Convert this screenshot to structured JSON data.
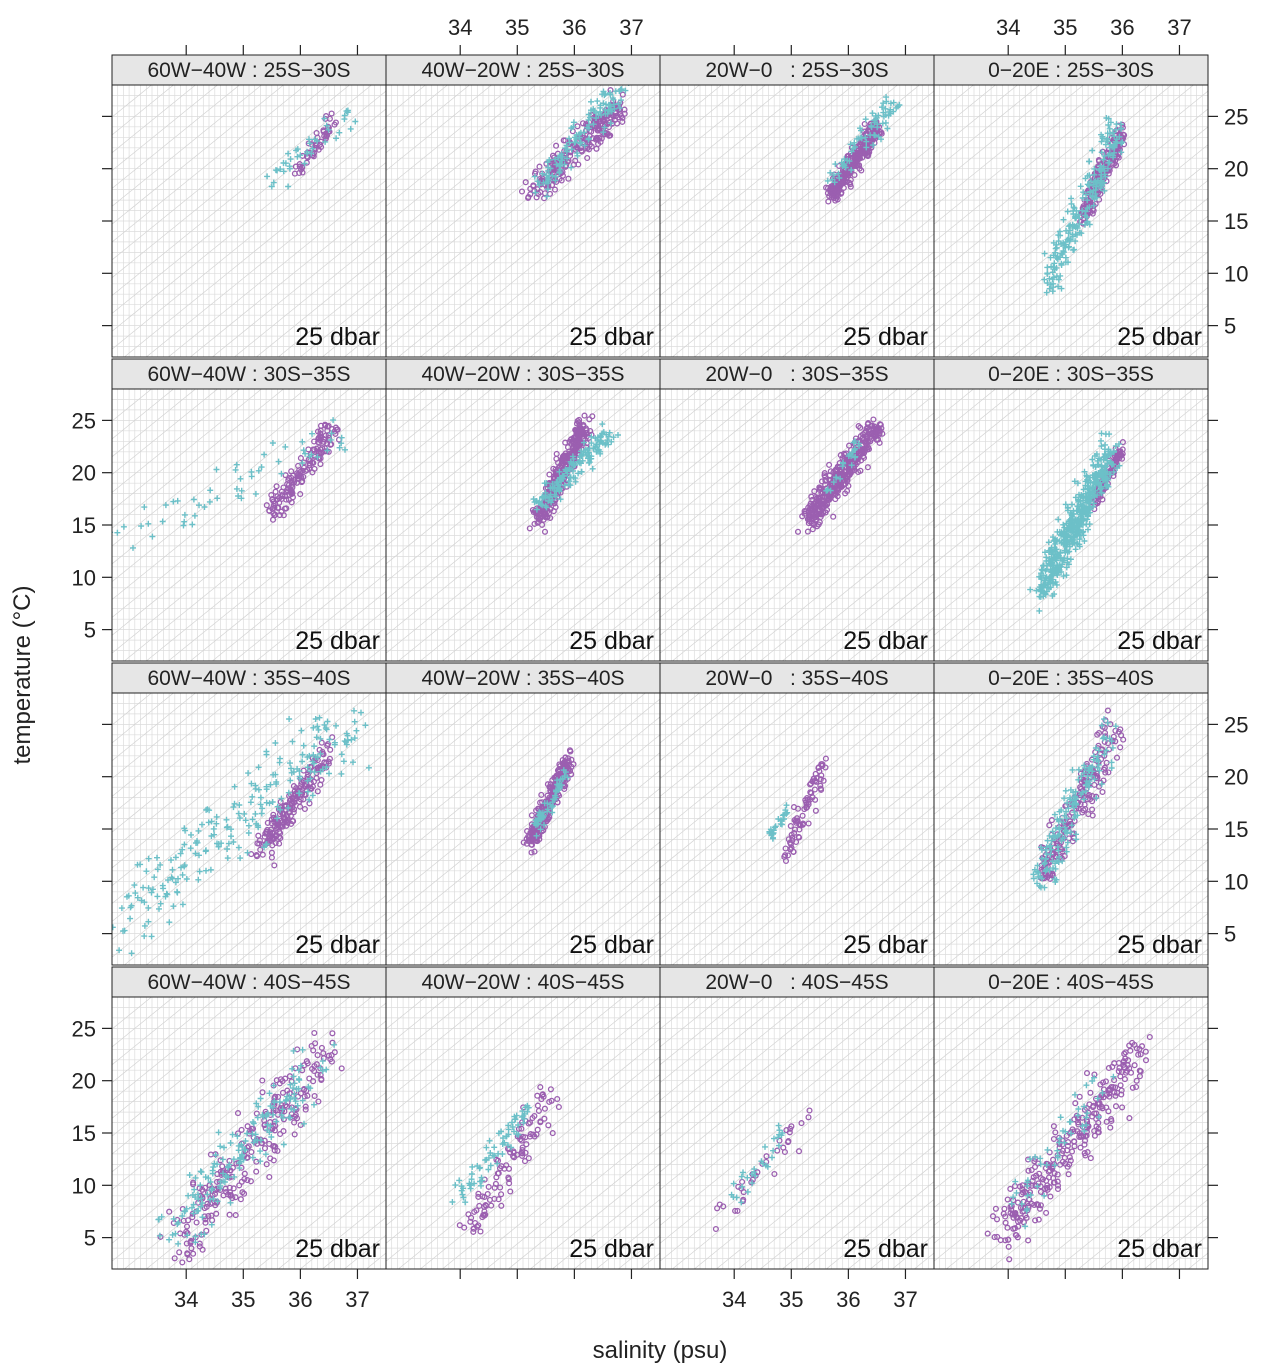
{
  "chart_data": {
    "type": "scatter",
    "layout": "4x4 lattice",
    "xlabel": "salinity (psu)",
    "ylabel": "temperature (°C)",
    "xlim": [
      32.7,
      37.5
    ],
    "ylim": [
      2,
      28
    ],
    "x_ticks": [
      34,
      35,
      36,
      37
    ],
    "y_ticks": [
      5,
      10,
      15,
      20,
      25
    ],
    "grid": "on",
    "pressure_label": "25 dbar",
    "series_styles": [
      {
        "marker": "circle",
        "color": "#9b5fb0"
      },
      {
        "marker": "plus",
        "color": "#6cc0c8"
      }
    ],
    "panels": [
      {
        "label": "60W−40W : 25S−30S",
        "row": 1,
        "col": 1,
        "clusters": [
          {
            "series": 0,
            "x": [
              35.95,
              36.6
            ],
            "y": [
              19.5,
              25.0
            ],
            "n": 50
          },
          {
            "series": 1,
            "x": [
              35.5,
              37.0
            ],
            "y": [
              19.0,
              25.5
            ],
            "n": 40
          }
        ]
      },
      {
        "label": "40W−20W : 25S−30S",
        "row": 1,
        "col": 2,
        "clusters": [
          {
            "series": 0,
            "x": [
              35.3,
              36.8
            ],
            "y": [
              18.0,
              26.0
            ],
            "n": 260
          },
          {
            "series": 1,
            "x": [
              35.3,
              36.8
            ],
            "y": [
              18.0,
              27.5
            ],
            "n": 120
          }
        ]
      },
      {
        "label": "20W−0   : 25S−30S",
        "row": 1,
        "col": 3,
        "clusters": [
          {
            "series": 0,
            "x": [
              35.7,
              36.5
            ],
            "y": [
              17.5,
              24.0
            ],
            "n": 320
          },
          {
            "series": 1,
            "x": [
              35.7,
              36.8
            ],
            "y": [
              19.0,
              26.5
            ],
            "n": 70
          }
        ]
      },
      {
        "label": "0−20E : 25S−30S",
        "row": 1,
        "col": 4,
        "clusters": [
          {
            "series": 0,
            "x": [
              35.3,
              36.0
            ],
            "y": [
              15.5,
              23.5
            ],
            "n": 230
          },
          {
            "series": 1,
            "x": [
              34.7,
              35.9
            ],
            "y": [
              9.5,
              23.5
            ],
            "n": 210
          }
        ]
      },
      {
        "label": "60W−40W : 30S−35S",
        "row": 2,
        "col": 1,
        "clusters": [
          {
            "series": 0,
            "x": [
              35.5,
              36.6
            ],
            "y": [
              16.0,
              24.5
            ],
            "n": 150
          },
          {
            "series": 1,
            "x": [
              32.8,
              36.8
            ],
            "y": [
              13.5,
              24.0
            ],
            "n": 60
          }
        ]
      },
      {
        "label": "40W−20W : 30S−35S",
        "row": 2,
        "col": 2,
        "clusters": [
          {
            "series": 0,
            "x": [
              35.35,
              36.2
            ],
            "y": [
              15.5,
              24.5
            ],
            "n": 340
          },
          {
            "series": 1,
            "x": [
              35.4,
              36.6
            ],
            "y": [
              17.0,
              24.0
            ],
            "n": 150
          }
        ]
      },
      {
        "label": "20W−0   : 30S−35S",
        "row": 2,
        "col": 3,
        "clusters": [
          {
            "series": 0,
            "x": [
              35.3,
              36.5
            ],
            "y": [
              15.5,
              24.5
            ],
            "n": 380
          },
          {
            "series": 1,
            "x": [
              35.6,
              36.2
            ],
            "y": [
              18.0,
              23.0
            ],
            "n": 25
          }
        ]
      },
      {
        "label": "0−20E : 30S−35S",
        "row": 2,
        "col": 4,
        "clusters": [
          {
            "series": 0,
            "x": [
              35.5,
              36.0
            ],
            "y": [
              17.0,
              22.5
            ],
            "n": 100
          },
          {
            "series": 1,
            "x": [
              34.6,
              35.8
            ],
            "y": [
              9.0,
              22.0
            ],
            "n": 520
          }
        ]
      },
      {
        "label": "60W−40W : 35S−40S",
        "row": 3,
        "col": 1,
        "clusters": [
          {
            "series": 0,
            "x": [
              35.3,
              36.5
            ],
            "y": [
              13.0,
              22.5
            ],
            "n": 200
          },
          {
            "series": 1,
            "x": [
              32.9,
              36.8
            ],
            "y": [
              6.0,
              25.0
            ],
            "n": 230
          }
        ]
      },
      {
        "label": "40W−20W : 35S−40S",
        "row": 3,
        "col": 2,
        "clusters": [
          {
            "series": 0,
            "x": [
              35.2,
              35.9
            ],
            "y": [
              13.5,
              21.5
            ],
            "n": 280
          },
          {
            "series": 1,
            "x": [
              35.3,
              35.9
            ],
            "y": [
              15.0,
              20.5
            ],
            "n": 60
          }
        ]
      },
      {
        "label": "20W−0   : 35S−40S",
        "row": 3,
        "col": 3,
        "clusters": [
          {
            "series": 0,
            "x": [
              34.9,
              35.6
            ],
            "y": [
              12.5,
              21.5
            ],
            "n": 80
          },
          {
            "series": 1,
            "x": [
              34.6,
              35.0
            ],
            "y": [
              14.0,
              17.5
            ],
            "n": 25
          }
        ]
      },
      {
        "label": "0−20E : 35S−40S",
        "row": 3,
        "col": 4,
        "clusters": [
          {
            "series": 0,
            "x": [
              34.6,
              35.9
            ],
            "y": [
              10.5,
              24.5
            ],
            "n": 200
          },
          {
            "series": 1,
            "x": [
              34.5,
              35.8
            ],
            "y": [
              10.0,
              24.0
            ],
            "n": 160
          }
        ]
      },
      {
        "label": "60W−40W : 40S−45S",
        "row": 4,
        "col": 1,
        "clusters": [
          {
            "series": 0,
            "x": [
              33.9,
              36.5
            ],
            "y": [
              4.5,
              23.0
            ],
            "n": 260
          },
          {
            "series": 1,
            "x": [
              33.7,
              36.3
            ],
            "y": [
              5.5,
              21.5
            ],
            "n": 170
          }
        ]
      },
      {
        "label": "40W−20W : 40S−45S",
        "row": 4,
        "col": 2,
        "clusters": [
          {
            "series": 0,
            "x": [
              34.2,
              35.6
            ],
            "y": [
              6.5,
              19.0
            ],
            "n": 110
          },
          {
            "series": 1,
            "x": [
              34.0,
              35.2
            ],
            "y": [
              9.0,
              17.5
            ],
            "n": 70
          }
        ]
      },
      {
        "label": "20W−0   : 40S−45S",
        "row": 4,
        "col": 3,
        "clusters": [
          {
            "series": 0,
            "x": [
              33.8,
              35.3
            ],
            "y": [
              7.0,
              17.0
            ],
            "n": 35
          },
          {
            "series": 1,
            "x": [
              34.0,
              34.9
            ],
            "y": [
              8.5,
              15.5
            ],
            "n": 30
          }
        ]
      },
      {
        "label": "0−20E : 40S−45S",
        "row": 4,
        "col": 4,
        "clusters": [
          {
            "series": 0,
            "x": [
              33.9,
              36.3
            ],
            "y": [
              5.5,
              22.5
            ],
            "n": 300
          },
          {
            "series": 1,
            "x": [
              34.1,
              35.7
            ],
            "y": [
              7.0,
              20.5
            ],
            "n": 50
          }
        ]
      }
    ]
  }
}
